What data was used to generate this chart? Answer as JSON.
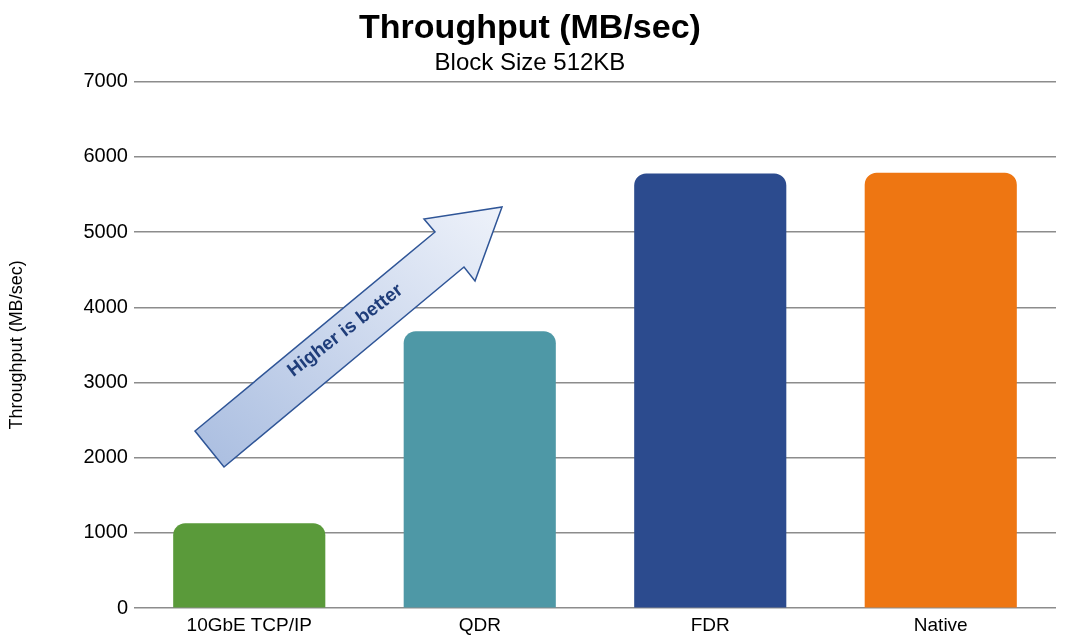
{
  "chart_data": {
    "type": "bar",
    "title": "Throughput (MB/sec)",
    "subtitle": "Block Size 512KB",
    "ylabel": "Throughput (MB/sec)",
    "categories": [
      "10GbE TCP/IP",
      "QDR",
      "FDR",
      "Native"
    ],
    "values": [
      1130,
      3680,
      5780,
      5790
    ],
    "colors": [
      "#5a9a3a",
      "#4e98a6",
      "#2c4b8e",
      "#ee7612"
    ],
    "ylim": [
      0,
      7000
    ],
    "yticks": [
      0,
      1000,
      2000,
      3000,
      4000,
      5000,
      6000,
      7000
    ],
    "grid": "y",
    "annotations": [
      "Higher is better"
    ]
  }
}
